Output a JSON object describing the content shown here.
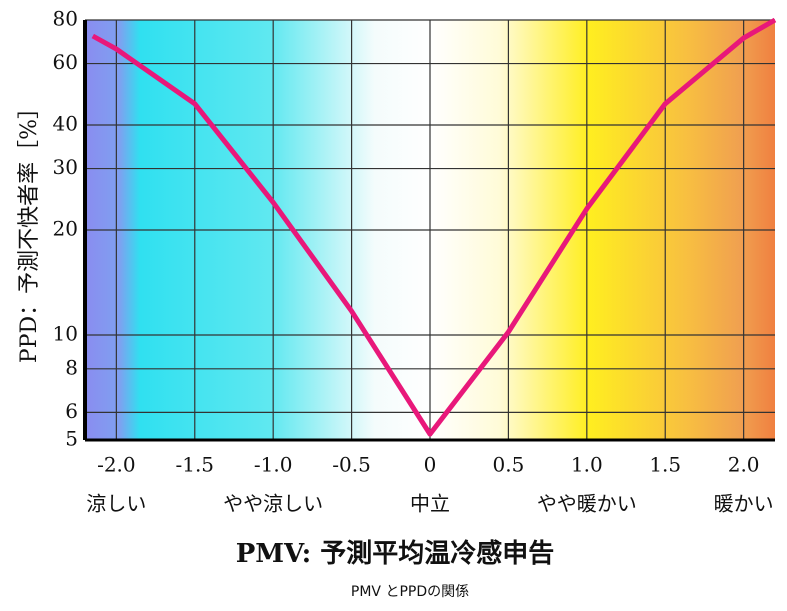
{
  "chart_data": {
    "type": "line",
    "x_label": "PMV:  予測平均温冷感申告",
    "y_label": "PPD：予測不快者率［%］",
    "caption": "PMV とPPDの関係",
    "x": [
      -2.15,
      -2,
      -1.5,
      -1,
      -0.5,
      0,
      0.5,
      1,
      1.5,
      2,
      2.2
    ],
    "series": [
      {
        "color": "#e8187a",
        "values": [
          72,
          66,
          46,
          24,
          11.7,
          5.2,
          10.2,
          23,
          46,
          71,
          80
        ]
      }
    ],
    "xlim": [
      -2.2,
      2.2
    ],
    "ylim": [
      5,
      80
    ],
    "ylog": true,
    "grid": true,
    "xticks": [
      {
        "value": -2,
        "label": "-2.0"
      },
      -1.5,
      {
        "value": -1,
        "label": "-1.0"
      },
      -0.5,
      0,
      0.5,
      {
        "value": 1,
        "label": "1.0"
      },
      1.5,
      {
        "value": 2,
        "label": "2.0"
      }
    ],
    "yticks": [
      5,
      6,
      8,
      10,
      20,
      30,
      40,
      60,
      80
    ],
    "sensation_labels": [
      {
        "value": -2,
        "label": "涼しい"
      },
      {
        "value": -1,
        "label": "やや涼しい"
      },
      {
        "value": 0,
        "label": "中立"
      },
      {
        "value": 1,
        "label": "やや暖かい"
      },
      {
        "value": 2,
        "label": "暖かい"
      }
    ]
  }
}
